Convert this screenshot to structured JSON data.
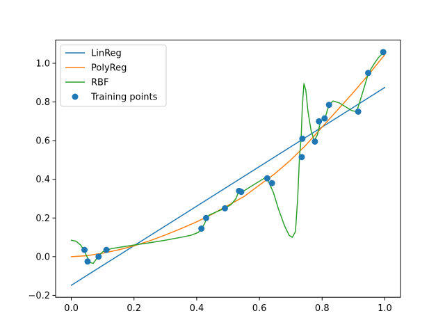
{
  "chart_data": {
    "type": "line",
    "title": "",
    "xlabel": "",
    "ylabel": "",
    "xlim": [
      -0.05,
      1.05
    ],
    "ylim": [
      -0.21,
      1.12
    ],
    "grid": false,
    "legend_position": "top-left",
    "x_ticks": [
      {
        "value": 0.0,
        "label": "0.0"
      },
      {
        "value": 0.2,
        "label": "0.2"
      },
      {
        "value": 0.4,
        "label": "0.4"
      },
      {
        "value": 0.6,
        "label": "0.6"
      },
      {
        "value": 0.8,
        "label": "0.8"
      },
      {
        "value": 1.0,
        "label": "1.0"
      }
    ],
    "y_ticks": [
      {
        "value": -0.2,
        "label": "−0.2"
      },
      {
        "value": 0.0,
        "label": "0.0"
      },
      {
        "value": 0.2,
        "label": "0.2"
      },
      {
        "value": 0.4,
        "label": "0.4"
      },
      {
        "value": 0.6,
        "label": "0.6"
      },
      {
        "value": 0.8,
        "label": "0.8"
      },
      {
        "value": 1.0,
        "label": "1.0"
      }
    ],
    "series": [
      {
        "name": "LinReg",
        "kind": "line",
        "color": "#1f77b4",
        "x": [
          0.0,
          1.0
        ],
        "y": [
          -0.148,
          0.875
        ]
      },
      {
        "name": "PolyReg",
        "kind": "line",
        "color": "#ff7f0e",
        "x": [
          0.0,
          0.05,
          0.1,
          0.15,
          0.2,
          0.25,
          0.3,
          0.35,
          0.4,
          0.45,
          0.5,
          0.55,
          0.6,
          0.65,
          0.7,
          0.75,
          0.8,
          0.85,
          0.9,
          0.95,
          1.0
        ],
        "y": [
          0.0,
          0.005,
          0.018,
          0.035,
          0.056,
          0.082,
          0.112,
          0.145,
          0.18,
          0.22,
          0.265,
          0.31,
          0.37,
          0.43,
          0.5,
          0.58,
          0.67,
          0.76,
          0.85,
          0.945,
          1.045
        ]
      },
      {
        "name": "RBF",
        "kind": "line",
        "color": "#2ca02c",
        "x": [
          0.0,
          0.015,
          0.03,
          0.04,
          0.05,
          0.06,
          0.07,
          0.085,
          0.1,
          0.112,
          0.13,
          0.16,
          0.2,
          0.25,
          0.3,
          0.35,
          0.38,
          0.405,
          0.415,
          0.425,
          0.432,
          0.44,
          0.46,
          0.49,
          0.51,
          0.525,
          0.535,
          0.545,
          0.56,
          0.58,
          0.6,
          0.615,
          0.625,
          0.63,
          0.645,
          0.66,
          0.68,
          0.695,
          0.705,
          0.715,
          0.722,
          0.728,
          0.733,
          0.737,
          0.742,
          0.748,
          0.755,
          0.765,
          0.775,
          0.785,
          0.795,
          0.81,
          0.822,
          0.835,
          0.855,
          0.875,
          0.895,
          0.91,
          0.92,
          0.935,
          0.948,
          0.965,
          0.98,
          0.995
        ],
        "y": [
          0.085,
          0.08,
          0.06,
          0.035,
          0.0,
          -0.03,
          -0.035,
          0.0,
          0.025,
          0.035,
          0.042,
          0.05,
          0.06,
          0.072,
          0.085,
          0.1,
          0.11,
          0.125,
          0.145,
          0.17,
          0.2,
          0.215,
          0.23,
          0.25,
          0.27,
          0.3,
          0.34,
          0.335,
          0.35,
          0.37,
          0.39,
          0.405,
          0.4,
          0.385,
          0.33,
          0.25,
          0.16,
          0.11,
          0.1,
          0.13,
          0.3,
          0.52,
          0.61,
          0.78,
          0.895,
          0.86,
          0.75,
          0.65,
          0.6,
          0.63,
          0.7,
          0.72,
          0.785,
          0.805,
          0.795,
          0.775,
          0.755,
          0.75,
          0.8,
          0.88,
          0.95,
          0.995,
          1.03,
          1.055
        ]
      }
    ],
    "scatter": {
      "name": "Training points",
      "color": "#1f77b4",
      "x": [
        0.042,
        0.052,
        0.087,
        0.112,
        0.415,
        0.43,
        0.49,
        0.535,
        0.542,
        0.625,
        0.64,
        0.735,
        0.737,
        0.777,
        0.79,
        0.808,
        0.822,
        0.915,
        0.947,
        0.995
      ],
      "y": [
        0.035,
        -0.025,
        0.0,
        0.035,
        0.145,
        0.2,
        0.25,
        0.34,
        0.335,
        0.405,
        0.38,
        0.515,
        0.61,
        0.595,
        0.7,
        0.715,
        0.785,
        0.75,
        0.95,
        1.058
      ]
    }
  }
}
